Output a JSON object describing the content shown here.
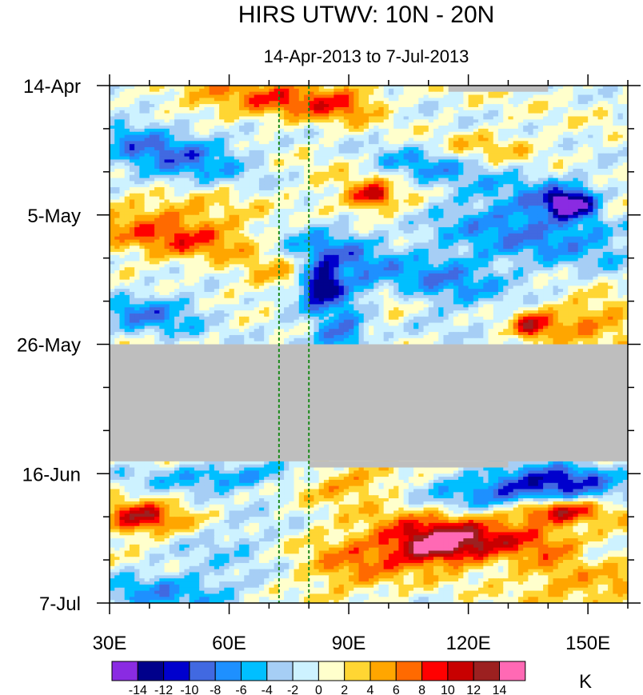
{
  "chart_data": {
    "type": "heatmap",
    "title": "HIRS UTWV: 10N - 20N",
    "subtitle": "14-Apr-2013 to 7-Jul-2013",
    "x_axis": {
      "label": "",
      "range": [
        30,
        160
      ],
      "ticks": [
        {
          "value": 30,
          "label": "30E"
        },
        {
          "value": 60,
          "label": "60E"
        },
        {
          "value": 90,
          "label": "90E"
        },
        {
          "value": 120,
          "label": "120E"
        },
        {
          "value": 150,
          "label": "150E"
        }
      ],
      "minor_tick_step": 10
    },
    "y_axis": {
      "label": "",
      "range_days": [
        0,
        84
      ],
      "direction": "downward",
      "ticks": [
        {
          "value": 0,
          "label": "14-Apr"
        },
        {
          "value": 21,
          "label": "5-May"
        },
        {
          "value": 42,
          "label": "26-May"
        },
        {
          "value": 63,
          "label": "16-Jun"
        },
        {
          "value": 84,
          "label": "7-Jul"
        }
      ],
      "minor_tick_step": 7
    },
    "reference_lines": [
      {
        "x": 72.5,
        "style": "dashed",
        "color": "#1a8a1a"
      },
      {
        "x": 80,
        "style": "dashed",
        "color": "#1a8a1a"
      }
    ],
    "missing_data": [
      {
        "x": [
          30,
          160
        ],
        "days": [
          42,
          61
        ],
        "note": "missing"
      },
      {
        "x": [
          80,
          130
        ],
        "days": [
          61,
          62
        ],
        "note": "missing"
      },
      {
        "x": [
          115,
          140
        ],
        "days": [
          0,
          1
        ],
        "note": "missing"
      }
    ],
    "colorbar": {
      "unit": "K",
      "levels": [
        -14,
        -12,
        -10,
        -8,
        -6,
        -4,
        -2,
        0,
        2,
        4,
        6,
        8,
        10,
        12,
        14
      ],
      "colors": [
        "#8a2be2",
        "#00008b",
        "#0000cd",
        "#4169e1",
        "#1e90ff",
        "#00bfff",
        "#a6cef5",
        "#cdf2ff",
        "#ffffcc",
        "#ffd633",
        "#ffa600",
        "#ff6a00",
        "#ff0000",
        "#c80000",
        "#9c2020",
        "#ff69b4"
      ],
      "missing_color": "#bebebe"
    },
    "features": [
      {
        "x": 43,
        "day": 20,
        "value": 5,
        "sx": 13,
        "sd": 3.5,
        "slope": 0.35
      },
      {
        "x": 50,
        "day": 25,
        "value": 6,
        "sx": 13,
        "sd": 2.5,
        "slope": 0.25
      },
      {
        "x": 75,
        "day": 31,
        "value": 7,
        "sx": 8,
        "sd": 2.5,
        "slope": 0
      },
      {
        "x": 36,
        "day": 8,
        "value": -5,
        "sx": 8,
        "sd": 3,
        "slope": 0
      },
      {
        "x": 48,
        "day": 14,
        "value": -6,
        "sx": 12,
        "sd": 3,
        "slope": 0.3
      },
      {
        "x": 40,
        "day": 37,
        "value": -7,
        "sx": 10,
        "sd": 2.5,
        "slope": 0
      },
      {
        "x": 85,
        "day": 30,
        "value": -9,
        "sx": 9,
        "sd": 6,
        "slope": 0
      },
      {
        "x": 83,
        "day": 32,
        "value": -12,
        "sx": 3,
        "sd": 2,
        "slope": 0
      },
      {
        "x": 88,
        "day": 41,
        "value": -8,
        "sx": 4,
        "sd": 2,
        "slope": 0
      },
      {
        "x": 95,
        "day": 18,
        "value": 6,
        "sx": 10,
        "sd": 3,
        "slope": 0
      },
      {
        "x": 96,
        "day": 18,
        "value": 8,
        "sx": 3,
        "sd": 1.2,
        "slope": 0
      },
      {
        "x": 140,
        "day": 22,
        "value": -8,
        "sx": 20,
        "sd": 5,
        "slope": -0.5
      },
      {
        "x": 145,
        "day": 19,
        "value": -11,
        "sx": 4,
        "sd": 1.5,
        "slope": 0
      },
      {
        "x": 158,
        "day": 20,
        "value": 7,
        "sx": 4,
        "sd": 2,
        "slope": 0
      },
      {
        "x": 118,
        "day": 10,
        "value": 5,
        "sx": 14,
        "sd": 2,
        "slope": -0.4
      },
      {
        "x": 108,
        "day": 12,
        "value": -7,
        "sx": 10,
        "sd": 3,
        "slope": 0
      },
      {
        "x": 150,
        "day": 38,
        "value": 6,
        "sx": 10,
        "sd": 2.5,
        "slope": 0
      },
      {
        "x": 136,
        "day": 39,
        "value": 9,
        "sx": 3,
        "sd": 1.5,
        "slope": 0
      },
      {
        "x": 113,
        "day": 32,
        "value": -6,
        "sx": 12,
        "sd": 4,
        "slope": 0
      },
      {
        "x": 100,
        "day": 36,
        "value": 5,
        "sx": 5,
        "sd": 2,
        "slope": 0
      },
      {
        "x": 78,
        "day": 2,
        "value": 5,
        "sx": 10,
        "sd": 2.5,
        "slope": 0
      },
      {
        "x": 90,
        "day": 3,
        "value": 5,
        "sx": 6,
        "sd": 2,
        "slope": 0
      },
      {
        "x": 60,
        "day": 2,
        "value": 4,
        "sx": 15,
        "sd": 2.5,
        "slope": 0
      },
      {
        "x": 50,
        "day": 10,
        "value": -4,
        "sx": 10,
        "sd": 2,
        "slope": 0
      },
      {
        "x": 40,
        "day": 71,
        "value": 5,
        "sx": 13,
        "sd": 2.5,
        "slope": 0.2
      },
      {
        "x": 38,
        "day": 70,
        "value": 7,
        "sx": 5,
        "sd": 1.5,
        "slope": 0
      },
      {
        "x": 60,
        "day": 73,
        "value": -4,
        "sx": 12,
        "sd": 3,
        "slope": 0
      },
      {
        "x": 120,
        "day": 73,
        "value": 9,
        "sx": 22,
        "sd": 3,
        "slope": -0.14
      },
      {
        "x": 142,
        "day": 69,
        "value": 11,
        "sx": 8,
        "sd": 1.3,
        "slope": 0
      },
      {
        "x": 112,
        "day": 75,
        "value": 10,
        "sx": 8,
        "sd": 2,
        "slope": 0
      },
      {
        "x": 130,
        "day": 66,
        "value": -9,
        "sx": 14,
        "sd": 2.5,
        "slope": -0.2
      },
      {
        "x": 145,
        "day": 64,
        "value": -7,
        "sx": 10,
        "sd": 2,
        "slope": 0
      },
      {
        "x": 90,
        "day": 64,
        "value": 6,
        "sx": 10,
        "sd": 2,
        "slope": 0
      },
      {
        "x": 60,
        "day": 63.5,
        "value": -7,
        "sx": 15,
        "sd": 1.5,
        "slope": 0
      },
      {
        "x": 45,
        "day": 82,
        "value": -6,
        "sx": 15,
        "sd": 2.5,
        "slope": 0
      },
      {
        "x": 90,
        "day": 79,
        "value": 5,
        "sx": 10,
        "sd": 3,
        "slope": 0
      },
      {
        "x": 150,
        "day": 80,
        "value": 6,
        "sx": 12,
        "sd": 3,
        "slope": 0
      },
      {
        "x": 152,
        "day": 77,
        "value": -5,
        "sx": 5,
        "sd": 2,
        "slope": 0
      }
    ]
  }
}
